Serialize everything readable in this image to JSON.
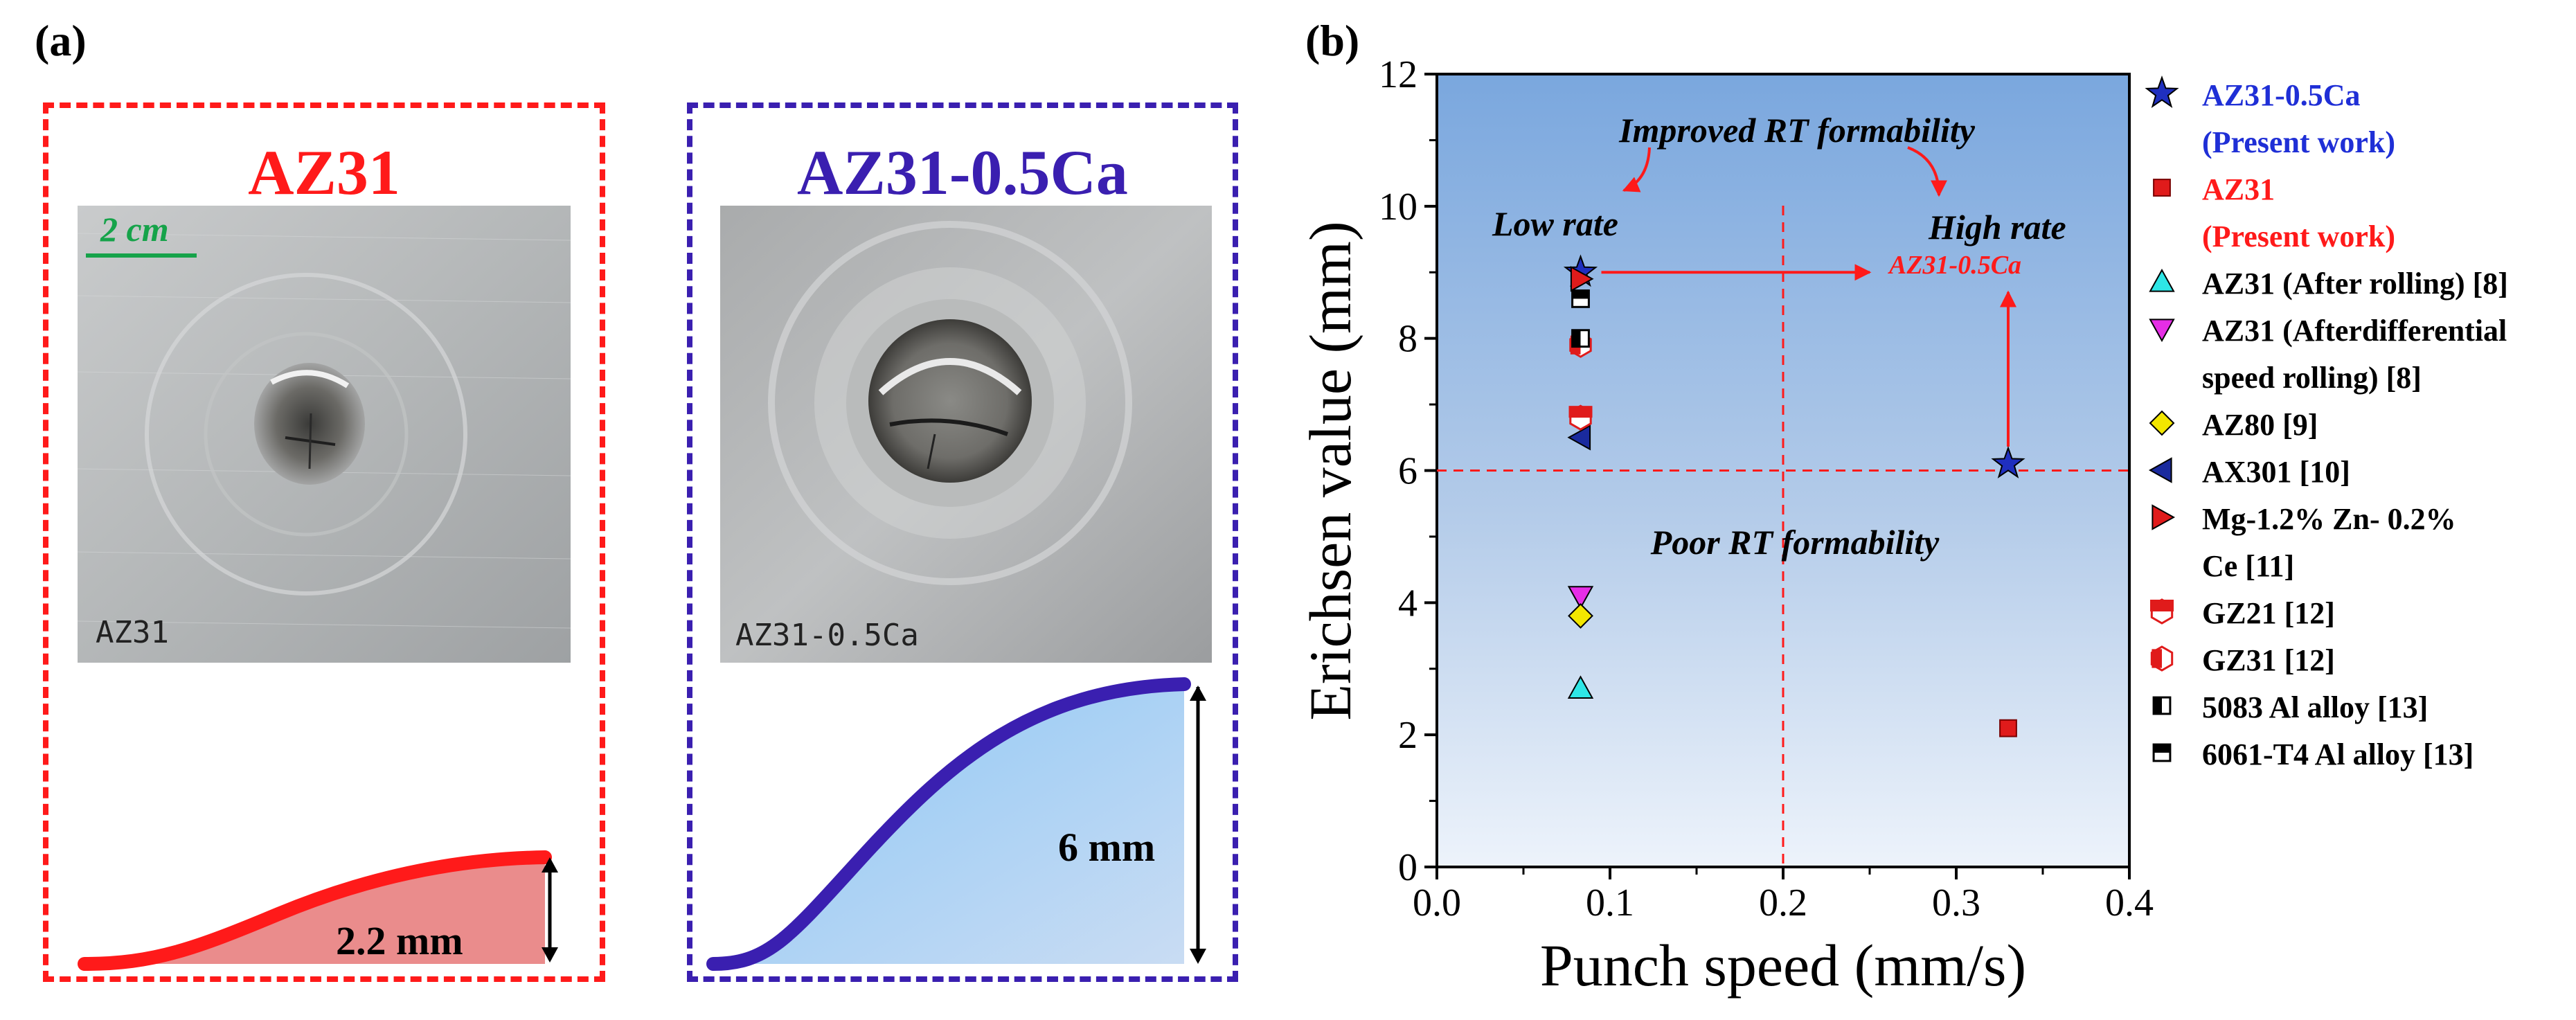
{
  "panel_a": {
    "label": "(a)",
    "samples": [
      {
        "title": "AZ31",
        "color": "#ff1a1a",
        "photo_caption": "AZ31",
        "scale_label": "2 cm",
        "height_label": "2.2 mm"
      },
      {
        "title": "AZ31-0.5Ca",
        "color": "#3a1fb0",
        "photo_caption": "AZ31-0.5Ca",
        "height_label": "6 mm"
      }
    ]
  },
  "panel_b": {
    "label": "(b)",
    "annotations": {
      "improved": "Improved RT formability",
      "poor": "Poor RT formability",
      "low_rate": "Low rate",
      "high_rate": "High rate",
      "arrow_label": "AZ31-0.5Ca"
    }
  },
  "chart_data": {
    "type": "scatter",
    "title": "",
    "xlabel": "Punch speed (mm/s)",
    "ylabel": "Erichsen value (mm)",
    "xlim": [
      0.0,
      0.4
    ],
    "ylim": [
      0,
      12
    ],
    "xticks": [
      "0.0",
      "0.1",
      "0.2",
      "0.3",
      "0.4"
    ],
    "yticks": [
      "0",
      "2",
      "4",
      "6",
      "8",
      "10",
      "12"
    ],
    "reference_lines": {
      "x": 0.2,
      "y": 6
    },
    "series": [
      {
        "name": "AZ31-0.5Ca",
        "name2": "(Present work)",
        "marker": "star",
        "color": "#1f2fbf",
        "label_color": "#1f2fd6",
        "points": [
          [
            0.083,
            9.0
          ],
          [
            0.33,
            6.1
          ]
        ]
      },
      {
        "name": "AZ31",
        "name2": "(Present work)",
        "marker": "square",
        "color": "#e01b1b",
        "label_color": "#ff1a1a",
        "points": [
          [
            0.33,
            2.1
          ]
        ]
      },
      {
        "name": "AZ31 (After rolling) [8]",
        "name2": "",
        "marker": "triangle-up",
        "color": "#2ee6e6",
        "label_color": "#000000",
        "points": [
          [
            0.083,
            2.7
          ]
        ]
      },
      {
        "name": "AZ31 (Afterdifferential",
        "name2": "speed rolling) [8]",
        "marker": "triangle-down",
        "color": "#e62ee6",
        "label_color": "#000000",
        "points": [
          [
            0.083,
            4.1
          ]
        ]
      },
      {
        "name": "AZ80 [9]",
        "name2": "",
        "marker": "diamond",
        "color": "#f2e600",
        "label_color": "#000000",
        "points": [
          [
            0.083,
            3.8
          ]
        ]
      },
      {
        "name": "AX301 [10]",
        "name2": "",
        "marker": "triangle-left",
        "color": "#1a2a9e",
        "label_color": "#000000",
        "points": [
          [
            0.083,
            6.5
          ]
        ]
      },
      {
        "name": "Mg-1.2% Zn- 0.2%",
        "name2": "Ce [11]",
        "marker": "triangle-right",
        "color": "#e01b1b",
        "label_color": "#000000",
        "points": [
          [
            0.083,
            8.9
          ]
        ]
      },
      {
        "name": "GZ21 [12]",
        "name2": "",
        "marker": "hex-half-h",
        "color": "#e01b1b",
        "label_color": "#000000",
        "points": [
          [
            0.083,
            6.8
          ]
        ]
      },
      {
        "name": "GZ31 [12]",
        "name2": "",
        "marker": "hex-half-v",
        "color": "#e01b1b",
        "label_color": "#000000",
        "points": [
          [
            0.083,
            7.9
          ]
        ]
      },
      {
        "name": "5083 Al alloy [13]",
        "name2": "",
        "marker": "square-half-v",
        "color": "#000000",
        "label_color": "#000000",
        "points": [
          [
            0.083,
            8.0
          ]
        ]
      },
      {
        "name": "6061-T4 Al alloy [13]",
        "name2": "",
        "marker": "square-half-h",
        "color": "#000000",
        "label_color": "#000000",
        "points": [
          [
            0.083,
            8.6
          ]
        ]
      }
    ]
  }
}
